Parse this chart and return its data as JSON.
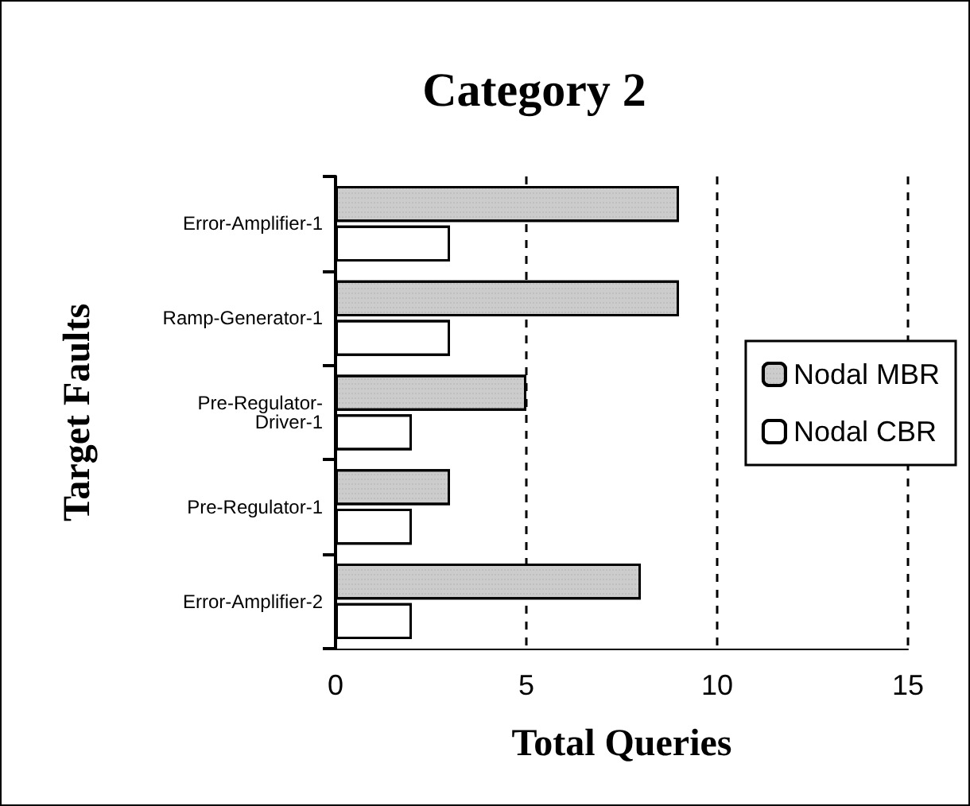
{
  "chart_data": {
    "type": "bar",
    "orientation": "horizontal",
    "title": "Category 2",
    "xlabel": "Total Queries",
    "ylabel": "Target Faults",
    "categories": [
      "Error-Amplifier-1",
      "Ramp-Generator-1",
      "Pre-Regulator-Driver-1",
      "Pre-Regulator-1",
      "Error-Amplifier-2"
    ],
    "series": [
      {
        "name": "Nodal MBR",
        "color": "#cccccc",
        "values": [
          9,
          9,
          5,
          3,
          8
        ]
      },
      {
        "name": "Nodal CBR",
        "color": "#ffffff",
        "values": [
          3,
          3,
          2,
          2,
          2
        ]
      }
    ],
    "xlim": [
      0,
      15
    ],
    "xticks": [
      0,
      5,
      10,
      15
    ],
    "grid": "x",
    "legend": "right"
  }
}
